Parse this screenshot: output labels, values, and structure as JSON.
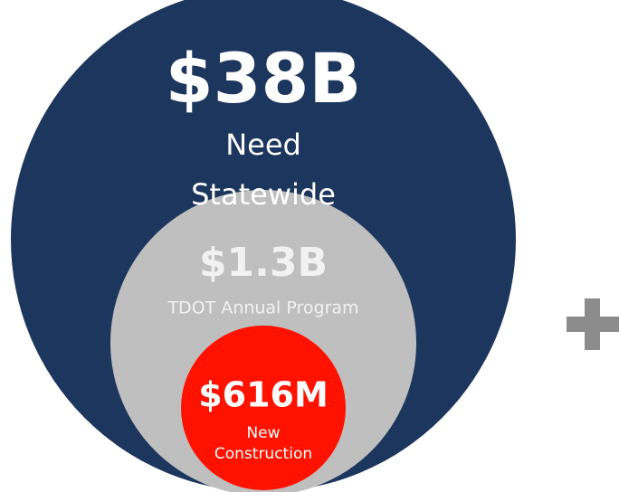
{
  "nodes": [
    {
      "value": "$38B",
      "label_lines": [
        "Need",
        "Statewide"
      ]
    },
    {
      "value": "$1.3B",
      "label_lines": [
        "TDOT Annual Program"
      ]
    },
    {
      "value": "$616M",
      "label_lines": [
        "New",
        "Construction"
      ]
    }
  ]
}
